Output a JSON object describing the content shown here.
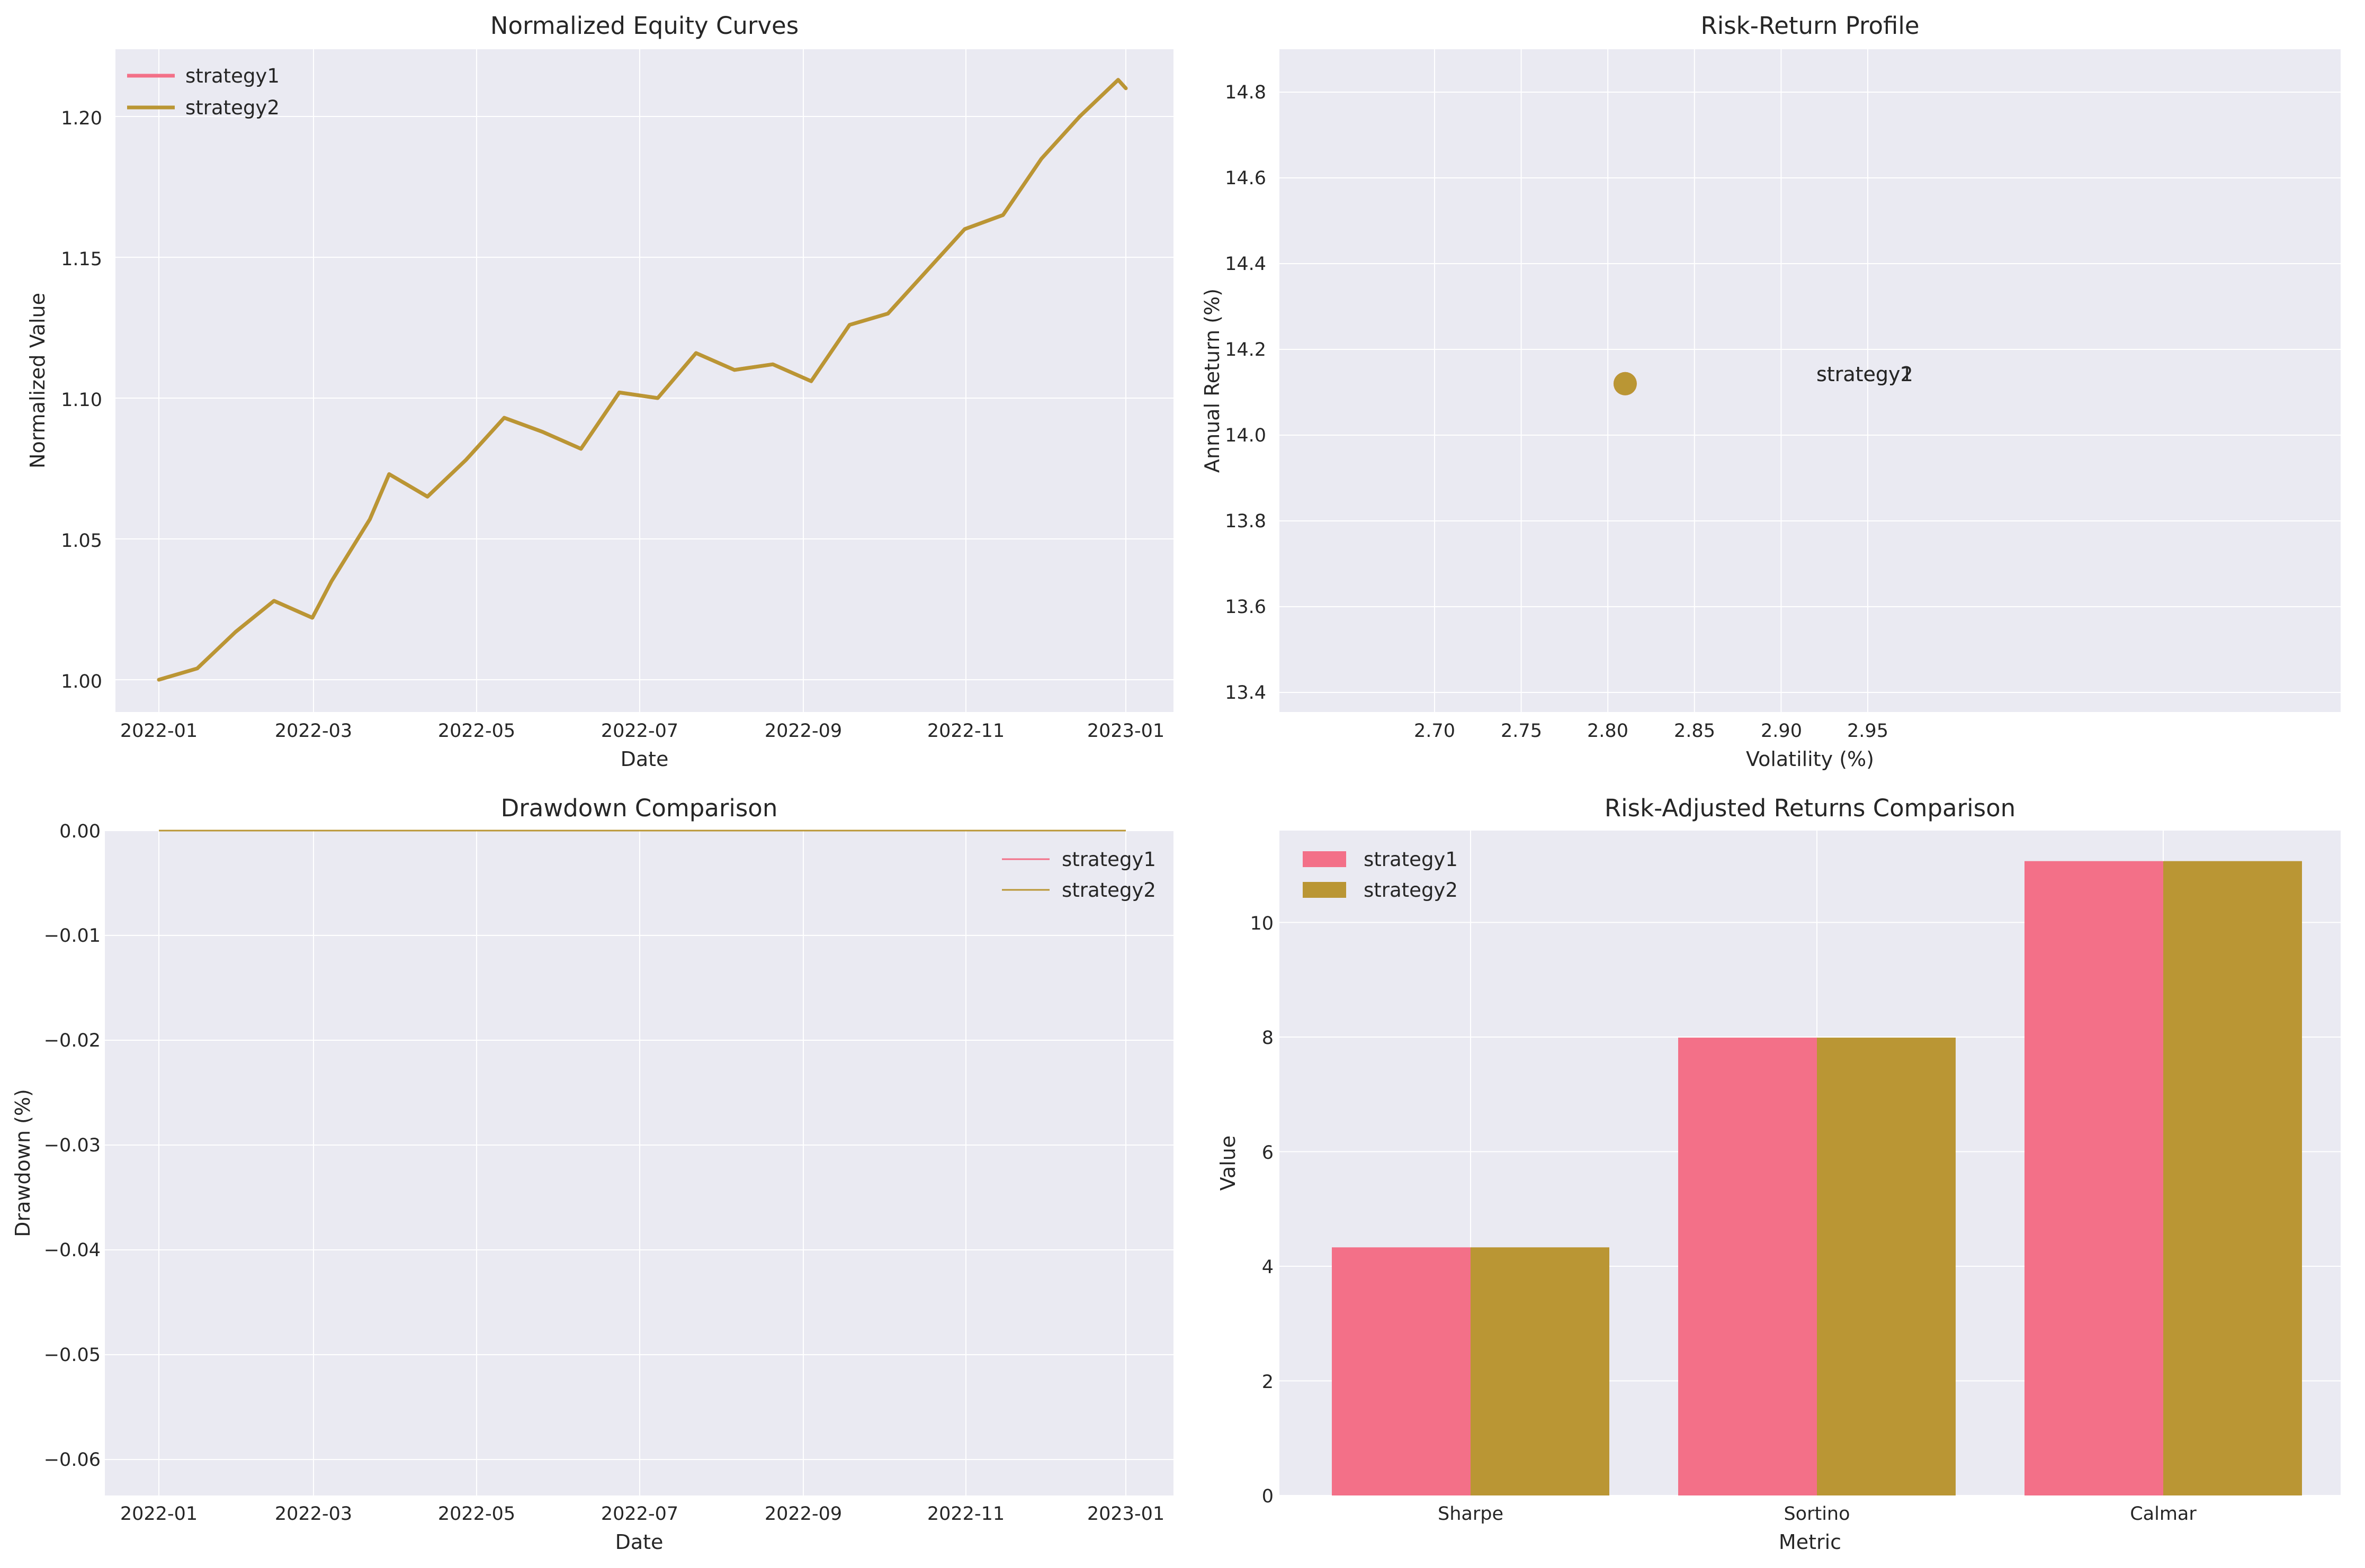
{
  "colors": {
    "strategy1": "#f37088",
    "strategy2": "#ba9634",
    "axes_bg": "#eaeaf2",
    "grid": "#ffffff"
  },
  "chart_data": [
    {
      "id": "equity",
      "type": "line",
      "title": "Normalized Equity Curves",
      "xlabel": "Date",
      "ylabel": "Normalized Value",
      "x_tick_labels": [
        "2022-01",
        "2022-03",
        "2022-05",
        "2022-07",
        "2022-09",
        "2022-11",
        "2023-01"
      ],
      "y_ticks": [
        "1.00",
        "1.05",
        "1.10",
        "1.15",
        "1.20"
      ],
      "ylim": [
        0.988,
        1.222
      ],
      "grid": true,
      "legend": "top-left",
      "x_unit": "trading day",
      "series": [
        {
          "name": "strategy1",
          "x": [
            0,
            10,
            20,
            30,
            40,
            45,
            55,
            60,
            70,
            80,
            90,
            100,
            110,
            120,
            130,
            140,
            150,
            160,
            170,
            180,
            190,
            200,
            210,
            220,
            230,
            240,
            250,
            252
          ],
          "y": [
            1.0,
            1.004,
            1.017,
            1.028,
            1.022,
            1.035,
            1.057,
            1.073,
            1.065,
            1.078,
            1.093,
            1.088,
            1.082,
            1.102,
            1.1,
            1.116,
            1.11,
            1.112,
            1.106,
            1.126,
            1.13,
            1.145,
            1.16,
            1.165,
            1.185,
            1.2,
            1.213,
            1.21
          ]
        },
        {
          "name": "strategy2",
          "x": [
            0,
            10,
            20,
            30,
            40,
            45,
            55,
            60,
            70,
            80,
            90,
            100,
            110,
            120,
            130,
            140,
            150,
            160,
            170,
            180,
            190,
            200,
            210,
            220,
            230,
            240,
            250,
            252
          ],
          "y": [
            1.0,
            1.004,
            1.017,
            1.028,
            1.022,
            1.035,
            1.057,
            1.073,
            1.065,
            1.078,
            1.093,
            1.088,
            1.082,
            1.102,
            1.1,
            1.116,
            1.11,
            1.112,
            1.106,
            1.126,
            1.13,
            1.145,
            1.16,
            1.165,
            1.185,
            1.2,
            1.213,
            1.21
          ]
        }
      ]
    },
    {
      "id": "riskreturn",
      "type": "scatter",
      "title": "Risk-Return Profile",
      "xlabel": "Volatility (%)",
      "ylabel": "Annual Return (%)",
      "x_ticks": [
        "2.70",
        "2.75",
        "2.80",
        "2.85",
        "2.90",
        "2.95"
      ],
      "y_ticks": [
        "13.4",
        "13.6",
        "13.8",
        "14.0",
        "14.2",
        "14.4",
        "14.6",
        "14.8"
      ],
      "xlim": [
        2.66,
        2.96
      ],
      "ylim": [
        13.35,
        14.9
      ],
      "grid": true,
      "points": [
        {
          "name": "strategy1",
          "x": 2.81,
          "y": 14.12,
          "label": "strategy1"
        },
        {
          "name": "strategy2",
          "x": 2.81,
          "y": 14.12,
          "label": "strategy2"
        }
      ]
    },
    {
      "id": "drawdown",
      "type": "line",
      "title": "Drawdown Comparison",
      "xlabel": "Date",
      "ylabel": "Drawdown (%)",
      "x_tick_labels": [
        "2022-01",
        "2022-03",
        "2022-05",
        "2022-07",
        "2022-09",
        "2022-11",
        "2023-01"
      ],
      "y_ticks": [
        "0.00",
        "−0.01",
        "−0.02",
        "−0.03",
        "−0.04",
        "−0.05",
        "−0.06"
      ],
      "ylim": [
        -0.0635,
        0.0
      ],
      "grid": true,
      "legend": "top-right",
      "x_unit": "trading day",
      "series": [
        {
          "name": "strategy1",
          "x": [
            0,
            252
          ],
          "y": [
            0.0,
            0.0
          ]
        },
        {
          "name": "strategy2",
          "x": [
            0,
            252
          ],
          "y": [
            0.0,
            0.0
          ]
        }
      ]
    },
    {
      "id": "riskadj",
      "type": "bar",
      "title": "Risk-Adjusted Returns Comparison",
      "xlabel": "Metric",
      "ylabel": "Value",
      "categories": [
        "Sharpe",
        "Sortino",
        "Calmar"
      ],
      "y_ticks": [
        "0",
        "2",
        "4",
        "6",
        "8",
        "10"
      ],
      "ylim": [
        0,
        11.6
      ],
      "grid": true,
      "legend": "top-left",
      "series": [
        {
          "name": "strategy1",
          "values": [
            4.33,
            7.99,
            11.07
          ]
        },
        {
          "name": "strategy2",
          "values": [
            4.33,
            7.99,
            11.07
          ]
        }
      ]
    }
  ]
}
